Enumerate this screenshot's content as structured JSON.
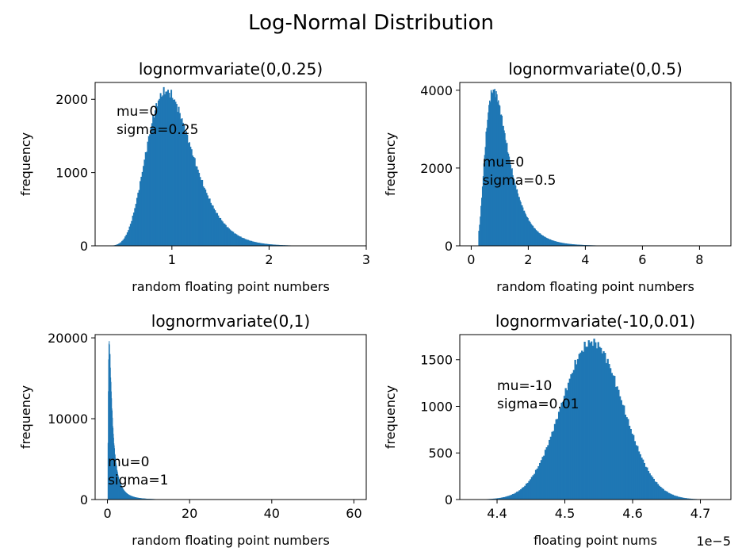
{
  "figure": {
    "suptitle": "Log-Normal Distribution",
    "bar_color": "#1f77b4"
  },
  "chart_data": [
    {
      "type": "bar",
      "title": "lognormvariate(0,0.25)",
      "xlabel": "random floating point numbers",
      "ylabel": "frequency",
      "xlim": [
        0.21,
        3.0
      ],
      "ylim": [
        0,
        2230
      ],
      "xticks": [
        1,
        2,
        3
      ],
      "xtick_labels": [
        "1",
        "2",
        "3"
      ],
      "yticks": [
        0,
        1000,
        2000
      ],
      "ytick_labels": [
        "0",
        "1000",
        "2000"
      ],
      "offset_label": "",
      "annotation": [
        "mu=0",
        "sigma=0.25"
      ],
      "annotation_x": 0.43,
      "dist": {
        "kind": "lognormal",
        "mu": 0,
        "sigma": 0.25,
        "peak": 2110,
        "min": 0.37,
        "max": 2.35
      }
    },
    {
      "type": "bar",
      "title": "lognormvariate(0,0.5)",
      "xlabel": "random floating point numbers",
      "ylabel": "frequency",
      "xlim": [
        -0.4,
        9.1
      ],
      "ylim": [
        0,
        4200
      ],
      "xticks": [
        0,
        2,
        4,
        6,
        8
      ],
      "xtick_labels": [
        "0",
        "2",
        "4",
        "6",
        "8"
      ],
      "yticks": [
        0,
        2000,
        4000
      ],
      "ytick_labels": [
        "0",
        "2000",
        "4000"
      ],
      "offset_label": "",
      "annotation": [
        "mu=0",
        "sigma=0.5"
      ],
      "annotation_x": 0.4,
      "dist": {
        "kind": "lognormal",
        "mu": 0,
        "sigma": 0.5,
        "peak": 4000,
        "min": 0.25,
        "max": 4.8
      }
    },
    {
      "type": "bar",
      "title": "lognormvariate(0,1)",
      "xlabel": "random floating point numbers",
      "ylabel": "frequency",
      "xlim": [
        -3,
        63
      ],
      "ylim": [
        0,
        20400
      ],
      "xticks": [
        0,
        20,
        40,
        60
      ],
      "xtick_labels": [
        "0",
        "20",
        "40",
        "60"
      ],
      "yticks": [
        0,
        10000,
        20000
      ],
      "ytick_labels": [
        "0",
        "10000",
        "20000"
      ],
      "offset_label": "",
      "annotation": [
        "mu=0",
        "sigma=1"
      ],
      "annotation_x": 0.1,
      "dist": {
        "kind": "lognormal",
        "mu": 0,
        "sigma": 1,
        "peak": 19500,
        "min": 0.05,
        "max": 13
      }
    },
    {
      "type": "bar",
      "title": "lognormvariate(-10,0.01)",
      "xlabel": "floating point nums",
      "ylabel": "frequency",
      "xlim": [
        4.345,
        4.745
      ],
      "ylim": [
        0,
        1770
      ],
      "xticks": [
        4.4,
        4.5,
        4.6,
        4.7
      ],
      "xtick_labels": [
        "4.4",
        "4.5",
        "4.6",
        "4.7"
      ],
      "yticks": [
        0,
        500,
        1000,
        1500
      ],
      "ytick_labels": [
        "0",
        "500",
        "1000",
        "1500"
      ],
      "offset_label": "1e−5",
      "annotation": [
        "mu=-10",
        "sigma=0.01"
      ],
      "annotation_x": 4.4,
      "dist": {
        "kind": "normal",
        "mean": 4.54,
        "sd": 0.045,
        "peak": 1690,
        "min": 4.37,
        "max": 4.73
      }
    }
  ]
}
